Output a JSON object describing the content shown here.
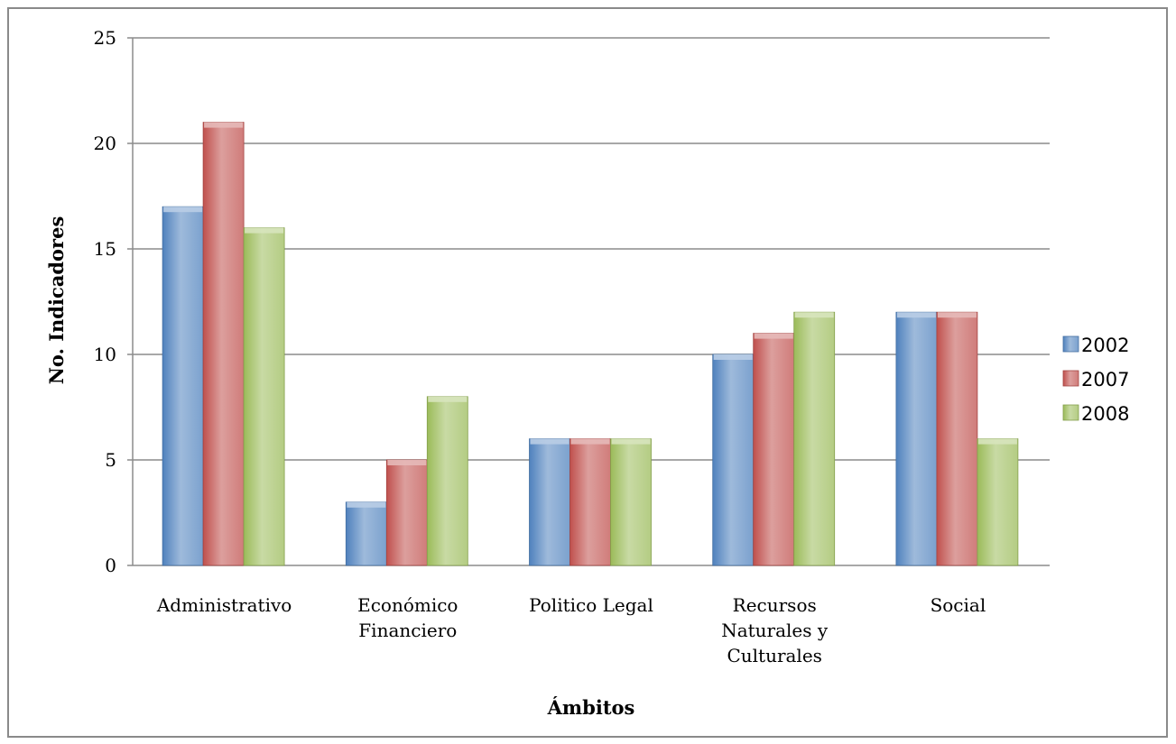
{
  "chart_data": {
    "type": "bar",
    "title": "",
    "xlabel": "Ámbitos",
    "ylabel": "No. Indicadores",
    "ylim": [
      0,
      25
    ],
    "yticks": [
      0,
      5,
      10,
      15,
      20,
      25
    ],
    "grid": true,
    "legend_position": "right",
    "categories": [
      [
        "Administrativo"
      ],
      [
        "Económico",
        "Financiero"
      ],
      [
        "Politico Legal"
      ],
      [
        "Recursos",
        "Naturales y",
        "Culturales"
      ],
      [
        "Social"
      ]
    ],
    "series": [
      {
        "name": "2002",
        "color": "#4f81bd",
        "values": [
          17,
          3,
          6,
          10,
          12
        ]
      },
      {
        "name": "2007",
        "color": "#c0504d",
        "values": [
          21,
          5,
          6,
          11,
          12
        ]
      },
      {
        "name": "2008",
        "color": "#9bbb59",
        "values": [
          16,
          8,
          6,
          12,
          6
        ]
      }
    ]
  }
}
